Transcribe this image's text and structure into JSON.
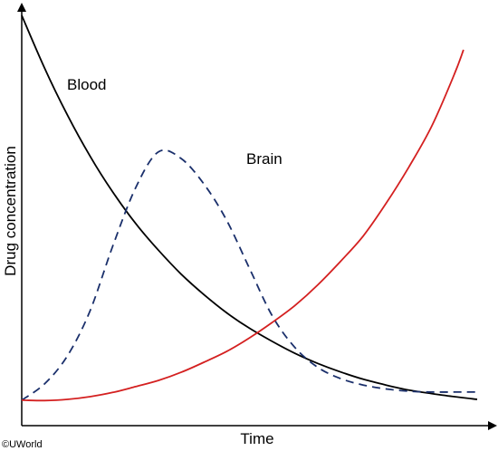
{
  "chart_data": {
    "type": "line",
    "xlabel": "Time",
    "ylabel": "Drug concentration",
    "xlim": [
      0,
      100
    ],
    "ylim": [
      0,
      100
    ],
    "grid": false,
    "series": [
      {
        "name": "Blood",
        "color": "#000000",
        "style": "solid",
        "x": [
          0,
          5,
          10,
          15,
          20,
          25,
          30,
          35,
          40,
          45,
          50,
          55,
          60,
          65,
          70,
          75,
          80,
          85,
          90,
          95,
          100
        ],
        "y": [
          100,
          86.4,
          74.3,
          63.6,
          54.3,
          46.2,
          39.3,
          33.1,
          27.8,
          23.1,
          19.1,
          15.7,
          12.6,
          10.0,
          7.8,
          5.9,
          4.4,
          3.1,
          2.2,
          1.4,
          0.7
        ]
      },
      {
        "name": "Brain",
        "color": "#1a2f6b",
        "style": "dashed",
        "x": [
          0,
          5,
          10,
          15,
          20,
          25,
          30,
          35,
          40,
          45,
          50,
          55,
          60,
          65,
          70,
          75,
          80,
          85,
          90,
          95,
          100
        ],
        "y": [
          0.5,
          4.7,
          11.9,
          23.6,
          40.4,
          55.4,
          64.7,
          63.0,
          56.4,
          47.0,
          34.6,
          22.3,
          14.1,
          9.0,
          6.1,
          4.4,
          3.4,
          2.8,
          2.6,
          2.6,
          2.6
        ]
      },
      {
        "name": "",
        "color": "#d42020",
        "style": "solid",
        "x": [
          0,
          5,
          10,
          15,
          20,
          25,
          30,
          35,
          40,
          45,
          50,
          55,
          60,
          65,
          70,
          75,
          80,
          85,
          90,
          95,
          97
        ],
        "y": [
          0.5,
          0.4,
          0.7,
          1.4,
          2.5,
          4.0,
          5.6,
          7.7,
          10.3,
          13.1,
          16.6,
          20.6,
          25.0,
          30.3,
          36.4,
          43.0,
          51.4,
          60.8,
          71.3,
          84.8,
          91.1
        ]
      }
    ],
    "annotations": [
      "Blood",
      "Brain"
    ]
  },
  "copyright": "©UWorld"
}
